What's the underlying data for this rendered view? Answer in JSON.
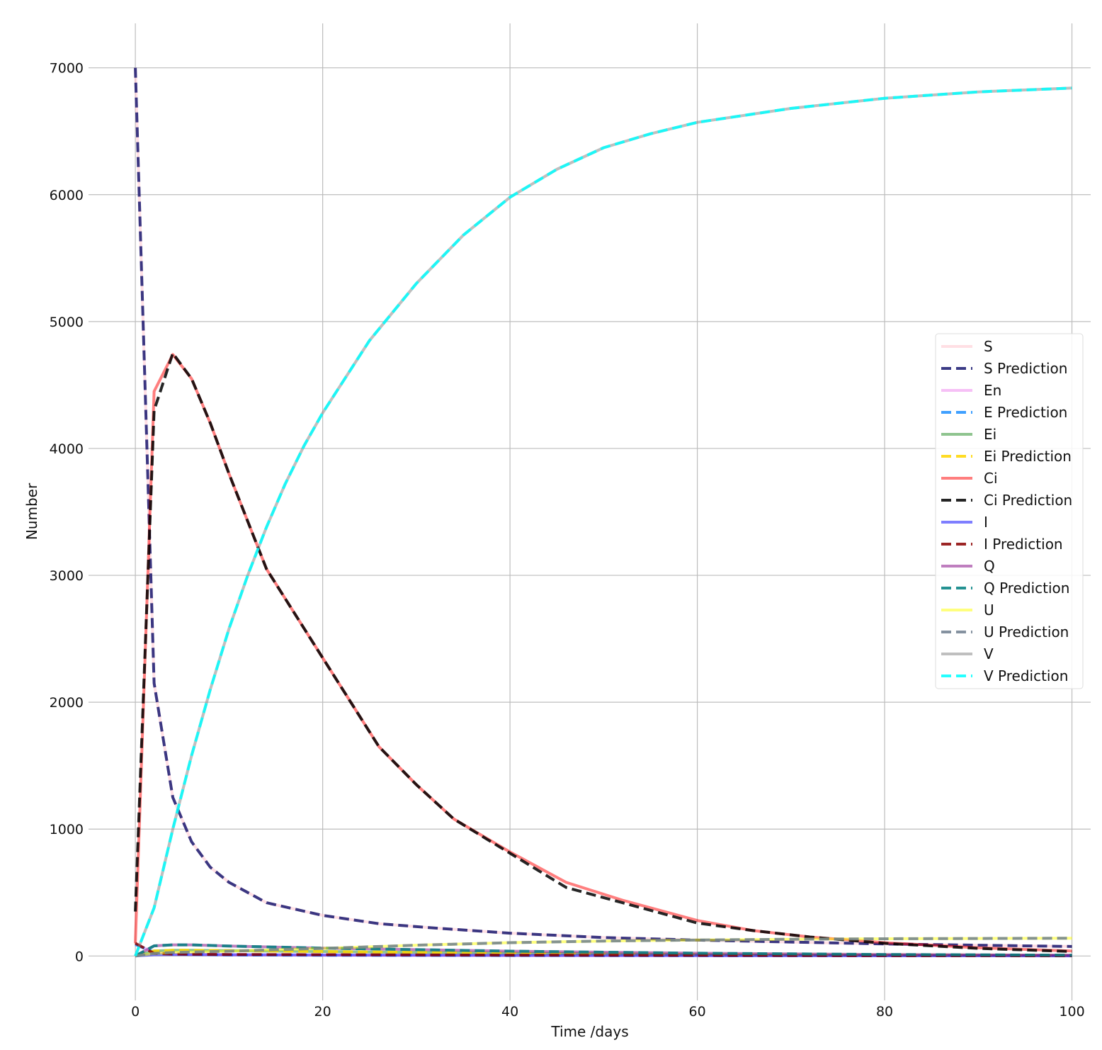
{
  "chart_data": {
    "type": "line",
    "title": "",
    "xlabel": "Time /days",
    "ylabel": "Number",
    "xlim": [
      -5,
      102
    ],
    "ylim": [
      -350,
      7350
    ],
    "xticks": [
      0,
      20,
      40,
      60,
      80,
      100
    ],
    "yticks": [
      0,
      1000,
      2000,
      3000,
      4000,
      5000,
      6000,
      7000
    ],
    "grid": true,
    "legend_position": "center-right",
    "series": [
      {
        "name": "S",
        "color": "#ffc0cb",
        "dash": false,
        "x": [
          0,
          2,
          4,
          6,
          8,
          10,
          14,
          20,
          26,
          32,
          40,
          50,
          60,
          70,
          80,
          90,
          100
        ],
        "y": [
          7000,
          2150,
          1250,
          900,
          700,
          580,
          420,
          320,
          255,
          220,
          180,
          145,
          125,
          110,
          95,
          85,
          75
        ]
      },
      {
        "name": "S Prediction",
        "color": "#191970",
        "dash": true,
        "x": [
          0,
          2,
          4,
          6,
          8,
          10,
          14,
          20,
          26,
          32,
          40,
          50,
          60,
          70,
          80,
          90,
          100
        ],
        "y": [
          7000,
          2150,
          1250,
          900,
          700,
          580,
          420,
          320,
          255,
          220,
          180,
          145,
          125,
          110,
          95,
          85,
          75
        ]
      },
      {
        "name": "En",
        "color": "#ee82ee",
        "dash": false,
        "x": [
          0,
          2,
          4,
          10,
          20,
          40,
          60,
          80,
          100
        ],
        "y": [
          90,
          30,
          15,
          8,
          6,
          4,
          3,
          2,
          2
        ]
      },
      {
        "name": "E Prediction",
        "color": "#1e90ff",
        "dash": true,
        "x": [
          0,
          2,
          4,
          10,
          20,
          40,
          60,
          80,
          100
        ],
        "y": [
          90,
          30,
          15,
          8,
          6,
          4,
          3,
          2,
          2
        ]
      },
      {
        "name": "Ei",
        "color": "#228b22",
        "dash": false,
        "x": [
          0,
          2,
          4,
          6,
          10,
          20,
          40,
          60,
          80,
          100
        ],
        "y": [
          0,
          40,
          45,
          45,
          42,
          35,
          22,
          12,
          7,
          4
        ]
      },
      {
        "name": "Ei Prediction",
        "color": "#ffd700",
        "dash": true,
        "x": [
          0,
          2,
          4,
          6,
          10,
          20,
          40,
          60,
          80,
          100
        ],
        "y": [
          0,
          40,
          45,
          45,
          42,
          35,
          22,
          12,
          7,
          4
        ]
      },
      {
        "name": "Ci",
        "color": "#ff0000",
        "dash": false,
        "x": [
          0,
          2,
          4,
          6,
          8,
          10,
          14,
          20,
          26,
          30,
          34,
          40,
          46,
          52,
          60,
          66,
          72,
          80,
          90,
          100
        ],
        "y": [
          100,
          4450,
          4740,
          4550,
          4200,
          3800,
          3050,
          2350,
          1650,
          1350,
          1080,
          820,
          580,
          440,
          280,
          200,
          150,
          105,
          65,
          40
        ]
      },
      {
        "name": "Ci Prediction",
        "color": "#000000",
        "dash": true,
        "x": [
          0,
          2,
          4,
          6,
          8,
          10,
          14,
          20,
          26,
          30,
          34,
          40,
          46,
          52,
          60,
          66,
          72,
          80,
          90,
          100
        ],
        "y": [
          350,
          4300,
          4750,
          4550,
          4200,
          3800,
          3050,
          2350,
          1650,
          1350,
          1080,
          810,
          540,
          420,
          260,
          200,
          150,
          100,
          60,
          35
        ]
      },
      {
        "name": "I",
        "color": "#0000ff",
        "dash": false,
        "x": [
          0,
          2,
          4,
          10,
          20,
          40,
          60,
          80,
          100
        ],
        "y": [
          0,
          10,
          12,
          10,
          8,
          5,
          3,
          2,
          1
        ]
      },
      {
        "name": "I Prediction",
        "color": "#8b0000",
        "dash": true,
        "x": [
          0,
          2,
          4,
          10,
          20,
          40,
          60,
          80,
          100
        ],
        "y": [
          100,
          20,
          15,
          12,
          10,
          7,
          5,
          3,
          2
        ]
      },
      {
        "name": "Q",
        "color": "#800080",
        "dash": false,
        "x": [
          0,
          2,
          4,
          6,
          10,
          20,
          40,
          60,
          80,
          100
        ],
        "y": [
          0,
          80,
          88,
          88,
          78,
          62,
          38,
          22,
          12,
          6
        ]
      },
      {
        "name": "Q Prediction",
        "color": "#008080",
        "dash": true,
        "x": [
          0,
          2,
          4,
          6,
          10,
          20,
          40,
          60,
          80,
          100
        ],
        "y": [
          0,
          80,
          88,
          88,
          78,
          62,
          38,
          22,
          12,
          6
        ]
      },
      {
        "name": "U",
        "color": "#ffff00",
        "dash": false,
        "x": [
          0,
          2,
          4,
          10,
          20,
          30,
          40,
          50,
          60,
          70,
          80,
          90,
          100
        ],
        "y": [
          0,
          20,
          28,
          38,
          60,
          85,
          105,
          118,
          126,
          132,
          136,
          138,
          140
        ]
      },
      {
        "name": "U Prediction",
        "color": "#708090",
        "dash": true,
        "x": [
          0,
          2,
          4,
          10,
          20,
          30,
          40,
          50,
          60,
          70,
          80,
          90,
          100
        ],
        "y": [
          0,
          20,
          28,
          38,
          60,
          85,
          105,
          118,
          126,
          132,
          136,
          138,
          140
        ]
      },
      {
        "name": "V",
        "color": "#808080",
        "dash": false,
        "x": [
          0,
          2,
          4,
          6,
          8,
          10,
          12,
          14,
          16,
          18,
          20,
          25,
          30,
          35,
          40,
          45,
          50,
          55,
          60,
          70,
          80,
          90,
          100
        ],
        "y": [
          0,
          380,
          1000,
          1580,
          2100,
          2580,
          3000,
          3380,
          3720,
          4020,
          4280,
          4850,
          5300,
          5680,
          5980,
          6200,
          6370,
          6480,
          6570,
          6680,
          6760,
          6810,
          6840
        ]
      },
      {
        "name": "V Prediction",
        "color": "#00ffff",
        "dash": true,
        "x": [
          0,
          2,
          4,
          6,
          8,
          10,
          12,
          14,
          16,
          18,
          20,
          25,
          30,
          35,
          40,
          45,
          50,
          55,
          60,
          70,
          80,
          90,
          100
        ],
        "y": [
          0,
          380,
          1000,
          1580,
          2100,
          2580,
          3000,
          3380,
          3720,
          4020,
          4280,
          4850,
          5300,
          5680,
          5980,
          6200,
          6370,
          6480,
          6570,
          6680,
          6760,
          6810,
          6840
        ]
      }
    ]
  }
}
